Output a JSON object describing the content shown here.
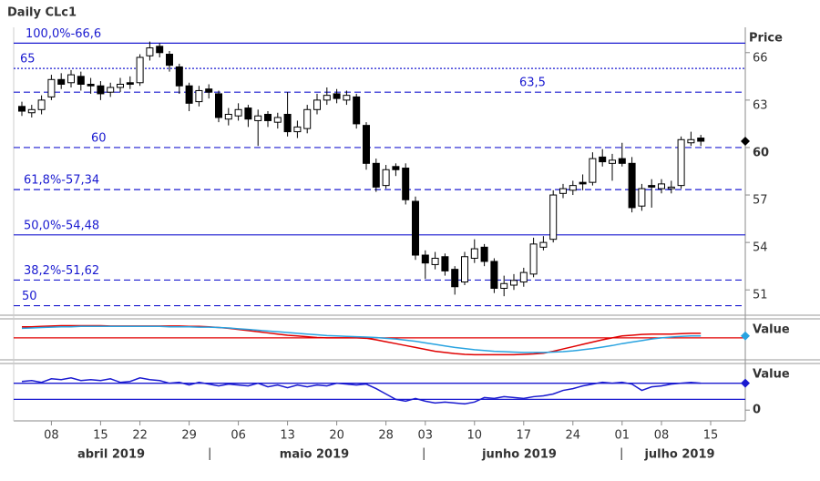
{
  "chart_data": {
    "type": "candlestick",
    "title": "Daily CLc1",
    "y_axis_label": "Price",
    "dates": [
      "2019-04-03",
      "2019-04-04",
      "2019-04-05",
      "2019-04-08",
      "2019-04-09",
      "2019-04-10",
      "2019-04-11",
      "2019-04-12",
      "2019-04-15",
      "2019-04-16",
      "2019-04-17",
      "2019-04-18",
      "2019-04-22",
      "2019-04-23",
      "2019-04-24",
      "2019-04-25",
      "2019-04-26",
      "2019-04-29",
      "2019-04-30",
      "2019-05-01",
      "2019-05-02",
      "2019-05-03",
      "2019-05-06",
      "2019-05-07",
      "2019-05-08",
      "2019-05-09",
      "2019-05-10",
      "2019-05-13",
      "2019-05-14",
      "2019-05-15",
      "2019-05-16",
      "2019-05-17",
      "2019-05-20",
      "2019-05-21",
      "2019-05-22",
      "2019-05-23",
      "2019-05-24",
      "2019-05-28",
      "2019-05-29",
      "2019-05-30",
      "2019-05-31",
      "2019-06-03",
      "2019-06-04",
      "2019-06-05",
      "2019-06-06",
      "2019-06-07",
      "2019-06-10",
      "2019-06-11",
      "2019-06-12",
      "2019-06-13",
      "2019-06-14",
      "2019-06-17",
      "2019-06-18",
      "2019-06-19",
      "2019-06-20",
      "2019-06-21",
      "2019-06-24",
      "2019-06-25",
      "2019-06-26",
      "2019-06-27",
      "2019-06-28",
      "2019-07-01",
      "2019-07-02",
      "2019-07-03",
      "2019-07-05",
      "2019-07-08",
      "2019-07-09",
      "2019-07-10",
      "2019-07-11",
      "2019-07-12"
    ],
    "open": [
      62.6,
      62.2,
      62.4,
      63.2,
      64.3,
      64.1,
      64.5,
      64.0,
      63.9,
      63.5,
      63.8,
      64.1,
      64.1,
      65.8,
      66.4,
      65.9,
      65.1,
      63.9,
      62.9,
      63.7,
      63.4,
      61.8,
      62.0,
      62.5,
      61.7,
      62.1,
      61.6,
      62.1,
      61.0,
      61.2,
      62.4,
      63.0,
      63.4,
      63.0,
      63.2,
      61.4,
      59.0,
      57.6,
      58.8,
      58.7,
      56.6,
      53.2,
      52.6,
      53.1,
      52.3,
      51.5,
      53.0,
      53.7,
      52.8,
      51.1,
      51.3,
      51.5,
      52.0,
      53.7,
      54.2,
      57.1,
      57.3,
      57.8,
      57.8,
      59.4,
      59.0,
      59.3,
      59.0,
      56.3,
      57.6,
      57.4,
      57.4,
      57.6,
      60.3,
      60.6
    ],
    "high": [
      62.9,
      62.7,
      63.3,
      64.6,
      64.7,
      64.9,
      64.8,
      64.4,
      64.2,
      64.1,
      64.4,
      64.5,
      65.9,
      66.7,
      66.6,
      66.1,
      65.3,
      64.1,
      63.9,
      64.0,
      63.6,
      62.5,
      62.8,
      62.7,
      62.4,
      62.3,
      62.2,
      63.5,
      61.7,
      62.7,
      63.4,
      63.8,
      63.7,
      63.6,
      63.4,
      61.6,
      59.3,
      58.9,
      59.0,
      59.0,
      56.9,
      53.5,
      53.4,
      53.3,
      52.5,
      53.4,
      54.2,
      53.9,
      53.0,
      51.9,
      52.0,
      52.4,
      54.3,
      54.4,
      57.3,
      57.7,
      57.9,
      58.3,
      59.7,
      59.9,
      59.6,
      60.3,
      59.4,
      57.7,
      58.0,
      58.0,
      57.9,
      60.7,
      61.0,
      60.8
    ],
    "low": [
      62.0,
      61.9,
      62.1,
      63.0,
      63.7,
      63.8,
      63.6,
      63.4,
      63.0,
      63.2,
      63.5,
      63.7,
      63.9,
      65.5,
      65.7,
      64.8,
      63.4,
      62.3,
      62.6,
      63.1,
      61.6,
      61.4,
      61.7,
      61.3,
      60.1,
      61.3,
      61.2,
      60.7,
      60.6,
      60.9,
      62.1,
      62.7,
      62.8,
      62.7,
      61.2,
      58.6,
      57.2,
      57.4,
      58.2,
      56.4,
      52.9,
      51.7,
      52.3,
      51.9,
      50.7,
      51.3,
      52.7,
      52.5,
      50.8,
      50.6,
      51.0,
      51.2,
      51.8,
      53.5,
      54.0,
      56.8,
      57.0,
      57.3,
      57.6,
      58.8,
      57.9,
      58.8,
      55.9,
      56.0,
      56.2,
      57.1,
      57.1,
      57.4,
      60.1,
      60.1
    ],
    "close": [
      62.3,
      62.4,
      63.0,
      64.3,
      64.0,
      64.6,
      64.0,
      63.9,
      63.4,
      63.8,
      64.0,
      64.0,
      65.7,
      66.3,
      66.0,
      65.2,
      63.9,
      62.8,
      63.6,
      63.5,
      61.9,
      62.1,
      62.4,
      61.8,
      62.0,
      61.7,
      61.9,
      61.0,
      61.3,
      62.4,
      63.0,
      63.3,
      63.1,
      63.3,
      61.5,
      59.0,
      57.5,
      58.6,
      58.6,
      56.7,
      53.2,
      52.7,
      53.0,
      52.2,
      51.2,
      53.1,
      53.6,
      52.8,
      51.1,
      51.4,
      51.6,
      52.1,
      53.9,
      54.0,
      57.0,
      57.4,
      57.6,
      57.7,
      59.3,
      59.1,
      59.2,
      59.0,
      56.2,
      57.4,
      57.5,
      57.7,
      57.5,
      60.5,
      60.5,
      60.4
    ],
    "ylim": [
      49.4,
      67.6
    ],
    "yticks": [
      51,
      54,
      57,
      60,
      63,
      66
    ],
    "xticks": [
      {
        "value": "2019-04-08",
        "label": "08"
      },
      {
        "value": "2019-04-15",
        "label": "15"
      },
      {
        "value": "2019-04-22",
        "label": "22"
      },
      {
        "value": "2019-04-29",
        "label": "29"
      },
      {
        "value": "2019-05-06",
        "label": "06"
      },
      {
        "value": "2019-05-13",
        "label": "13"
      },
      {
        "value": "2019-05-20",
        "label": "20"
      },
      {
        "value": "2019-05-28",
        "label": "28"
      },
      {
        "value": "2019-06-03",
        "label": "03"
      },
      {
        "value": "2019-06-10",
        "label": "10"
      },
      {
        "value": "2019-06-17",
        "label": "17"
      },
      {
        "value": "2019-06-24",
        "label": "24"
      },
      {
        "value": "2019-07-01",
        "label": "01"
      },
      {
        "value": "2019-07-08",
        "label": "08"
      },
      {
        "value": "2019-07-15",
        "label": "15"
      }
    ],
    "month_labels": [
      "abril 2019",
      "maio 2019",
      "junho 2019",
      "julho 2019"
    ],
    "levels": [
      {
        "value": 66.6,
        "label": "100,0%-66,6",
        "style": "solid"
      },
      {
        "value": 65,
        "label": "65",
        "style": "dotted"
      },
      {
        "value": 63.5,
        "label": "63,5",
        "style": "dashed"
      },
      {
        "value": 60,
        "label": "60",
        "style": "dashed"
      },
      {
        "value": 57.34,
        "label": "61,8%-57,34",
        "style": "dashed"
      },
      {
        "value": 54.48,
        "label": "50,0%-54,48",
        "style": "solid"
      },
      {
        "value": 51.62,
        "label": "38,2%-51,62",
        "style": "dashed"
      },
      {
        "value": 50,
        "label": "50",
        "style": "dashed"
      }
    ],
    "level_color": "#1a1ad0",
    "indicators": [
      {
        "label": "Value",
        "ylim": [
          0,
          100
        ],
        "level": 55,
        "level_color": "#e00000",
        "series": [
          {
            "color": "#e00000",
            "values": [
              84,
              84,
              85,
              86,
              87,
              87,
              87,
              87,
              87,
              86,
              86,
              86,
              86,
              86,
              86,
              86,
              86,
              85,
              85,
              84,
              82,
              80,
              77,
              74,
              71,
              68,
              65,
              62,
              60,
              58,
              56,
              55,
              55,
              55,
              55,
              54,
              50,
              45,
              40,
              35,
              30,
              25,
              20,
              17,
              14,
              12,
              11,
              11,
              11,
              11,
              11,
              12,
              13,
              15,
              20,
              26,
              32,
              38,
              44,
              50,
              55,
              60,
              62,
              64,
              65,
              65,
              65,
              66,
              67,
              67
            ]
          },
          {
            "color": "#29a3e0",
            "values": [
              80,
              81,
              82,
              83,
              84,
              84,
              85,
              85,
              85,
              85,
              85,
              85,
              85,
              85,
              85,
              84,
              84,
              84,
              83,
              83,
              82,
              81,
              79,
              77,
              75,
              73,
              71,
              69,
              67,
              65,
              63,
              61,
              60,
              59,
              58,
              57,
              56,
              54,
              52,
              49,
              46,
              42,
              38,
              34,
              30,
              27,
              24,
              22,
              20,
              19,
              18,
              17,
              17,
              17,
              18,
              19,
              21,
              24,
              27,
              31,
              35,
              40,
              44,
              48,
              52,
              55,
              57,
              59,
              60,
              60
            ]
          }
        ]
      },
      {
        "label": "Value",
        "ylim": [
          -12,
          50
        ],
        "yticks": [
          0
        ],
        "levels": [
          30,
          12
        ],
        "level_color": "#1a1ad0",
        "series": [
          {
            "color": "#1a1ad0",
            "values": [
              32,
              33,
              31,
              35,
              34,
              36,
              33,
              34,
              33,
              35,
              31,
              32,
              36,
              34,
              33,
              30,
              31,
              28,
              31,
              29,
              27,
              29,
              28,
              27,
              30,
              26,
              28,
              25,
              28,
              26,
              28,
              27,
              30,
              29,
              28,
              29,
              24,
              18,
              12,
              10,
              13,
              10,
              8,
              9,
              8,
              7,
              9,
              14,
              13,
              15,
              14,
              13,
              15,
              16,
              18,
              22,
              24,
              27,
              29,
              31,
              30,
              31,
              29,
              22,
              26,
              27,
              29,
              30,
              31,
              30
            ]
          }
        ]
      }
    ]
  }
}
